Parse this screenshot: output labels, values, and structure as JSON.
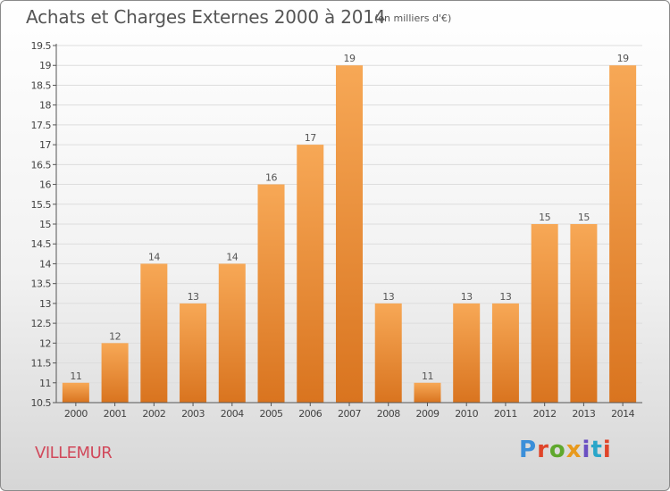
{
  "header": {
    "title": "Achats et Charges Externes 2000 à 2014",
    "subtitle": "(en milliers d'€)"
  },
  "footer": {
    "town": "VILLEMUR",
    "logo": [
      "P",
      "r",
      "o",
      "x",
      "i",
      "t",
      "i"
    ]
  },
  "colors": {
    "bar_light": "#f7a856",
    "bar_dark": "#d9741f",
    "grid": "#dddddd",
    "axis": "#555555",
    "town": "#d1495b"
  },
  "chart_data": {
    "type": "bar",
    "title": "Achats et Charges Externes 2000 à 2014",
    "subtitle": "(en milliers d'€)",
    "categories": [
      "2000",
      "2001",
      "2002",
      "2003",
      "2004",
      "2005",
      "2006",
      "2007",
      "2008",
      "2009",
      "2010",
      "2011",
      "2012",
      "2013",
      "2014"
    ],
    "values": [
      11,
      12,
      14,
      13,
      14,
      16,
      17,
      19,
      13,
      11,
      13,
      13,
      15,
      15,
      19
    ],
    "data_labels": [
      "11",
      "12",
      "14",
      "13",
      "14",
      "16",
      "17",
      "19",
      "13",
      "11",
      "13",
      "13",
      "15",
      "15",
      "19"
    ],
    "ylim": [
      10.5,
      19.5
    ],
    "yticks": [
      10.5,
      11,
      11.5,
      12,
      12.5,
      13,
      13.5,
      14,
      14.5,
      15,
      15.5,
      16,
      16.5,
      17,
      17.5,
      18,
      18.5,
      19,
      19.5
    ],
    "ytick_labels": [
      "10.5",
      "11",
      "11.5",
      "12",
      "12.5",
      "13",
      "13.5",
      "14",
      "14.5",
      "15",
      "15.5",
      "16",
      "16.5",
      "17",
      "17.5",
      "18",
      "18.5",
      "19",
      "19.5"
    ],
    "xlabel": "",
    "ylabel": "",
    "grid": true
  }
}
